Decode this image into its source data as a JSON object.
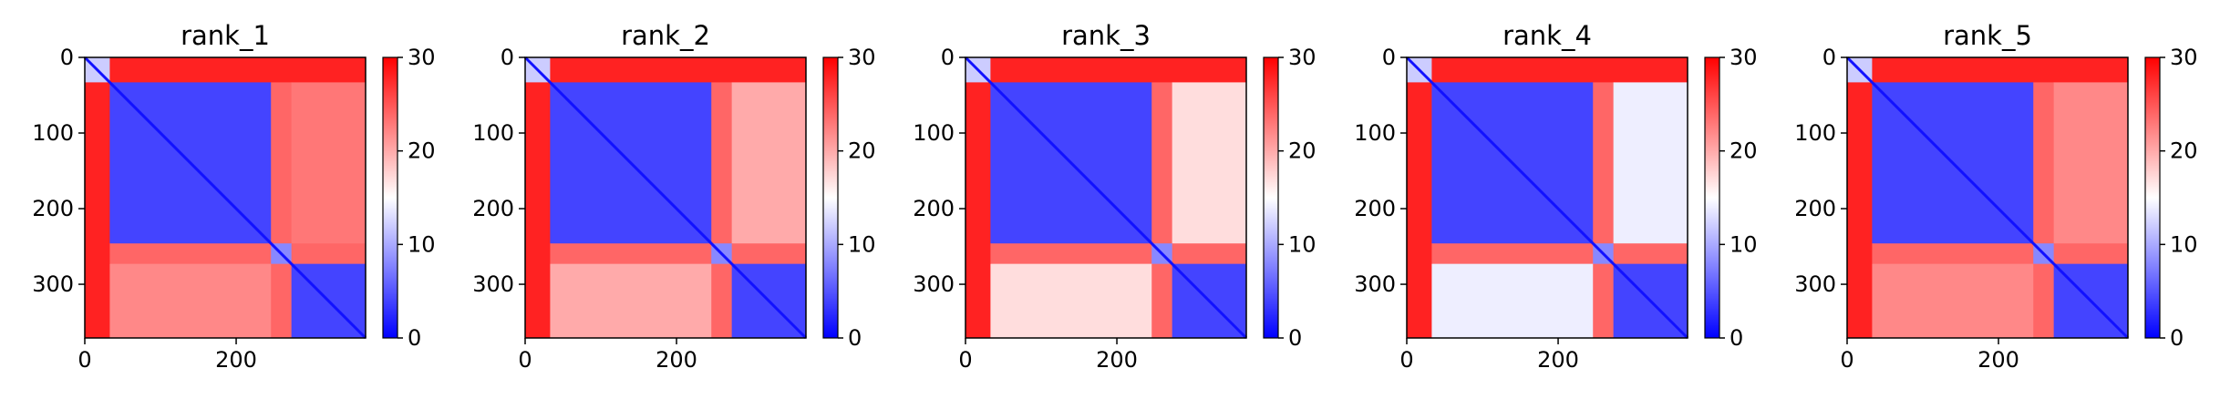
{
  "chart_data": [
    {
      "type": "heatmap",
      "title": "rank_1",
      "xlim": [
        0,
        371
      ],
      "ylim": [
        0,
        371
      ],
      "xticks": [
        0,
        200
      ],
      "yticks": [
        0,
        100,
        200,
        300
      ],
      "colorbar": {
        "range": [
          0,
          30
        ],
        "ticks": [
          0,
          10,
          20,
          30
        ],
        "colormap": "bwr"
      },
      "segments": [
        [
          0,
          33
        ],
        [
          33,
          246
        ],
        [
          246,
          273
        ],
        [
          273,
          371
        ]
      ],
      "block_values": [
        [
          12,
          28,
          28,
          28
        ],
        [
          28,
          4,
          24,
          23
        ],
        [
          28,
          24,
          8,
          24
        ],
        [
          28,
          22,
          24,
          4
        ]
      ]
    },
    {
      "type": "heatmap",
      "title": "rank_2",
      "xlim": [
        0,
        371
      ],
      "ylim": [
        0,
        371
      ],
      "xticks": [
        0,
        200
      ],
      "yticks": [
        0,
        100,
        200,
        300
      ],
      "colorbar": {
        "range": [
          0,
          30
        ],
        "ticks": [
          0,
          10,
          20,
          30
        ],
        "colormap": "bwr"
      },
      "segments": [
        [
          0,
          33
        ],
        [
          33,
          246
        ],
        [
          246,
          273
        ],
        [
          273,
          371
        ]
      ],
      "block_values": [
        [
          12,
          28,
          28,
          28
        ],
        [
          28,
          4,
          24,
          20
        ],
        [
          28,
          24,
          8,
          24
        ],
        [
          28,
          20,
          24,
          4
        ]
      ]
    },
    {
      "type": "heatmap",
      "title": "rank_3",
      "xlim": [
        0,
        371
      ],
      "ylim": [
        0,
        371
      ],
      "xticks": [
        0,
        200
      ],
      "yticks": [
        0,
        100,
        200,
        300
      ],
      "colorbar": {
        "range": [
          0,
          30
        ],
        "ticks": [
          0,
          10,
          20,
          30
        ],
        "colormap": "bwr"
      },
      "segments": [
        [
          0,
          33
        ],
        [
          33,
          246
        ],
        [
          246,
          273
        ],
        [
          273,
          371
        ]
      ],
      "block_values": [
        [
          12,
          28,
          28,
          28
        ],
        [
          28,
          4,
          24,
          17
        ],
        [
          28,
          24,
          8,
          24
        ],
        [
          28,
          17,
          24,
          4
        ]
      ]
    },
    {
      "type": "heatmap",
      "title": "rank_4",
      "xlim": [
        0,
        371
      ],
      "ylim": [
        0,
        371
      ],
      "xticks": [
        0,
        200
      ],
      "yticks": [
        0,
        100,
        200,
        300
      ],
      "colorbar": {
        "range": [
          0,
          30
        ],
        "ticks": [
          0,
          10,
          20,
          30
        ],
        "colormap": "bwr"
      },
      "segments": [
        [
          0,
          33
        ],
        [
          33,
          246
        ],
        [
          246,
          273
        ],
        [
          273,
          371
        ]
      ],
      "block_values": [
        [
          12,
          28,
          28,
          28
        ],
        [
          28,
          4,
          24,
          14
        ],
        [
          28,
          24,
          8,
          24
        ],
        [
          28,
          14,
          24,
          4
        ]
      ]
    },
    {
      "type": "heatmap",
      "title": "rank_5",
      "xlim": [
        0,
        371
      ],
      "ylim": [
        0,
        371
      ],
      "xticks": [
        0,
        200
      ],
      "yticks": [
        0,
        100,
        200,
        300
      ],
      "colorbar": {
        "range": [
          0,
          30
        ],
        "ticks": [
          0,
          10,
          20,
          30
        ],
        "colormap": "bwr"
      },
      "segments": [
        [
          0,
          33
        ],
        [
          33,
          246
        ],
        [
          246,
          273
        ],
        [
          273,
          371
        ]
      ],
      "block_values": [
        [
          12,
          28,
          28,
          28
        ],
        [
          28,
          4,
          24,
          22
        ],
        [
          28,
          24,
          8,
          24
        ],
        [
          28,
          22,
          24,
          4
        ]
      ]
    }
  ]
}
